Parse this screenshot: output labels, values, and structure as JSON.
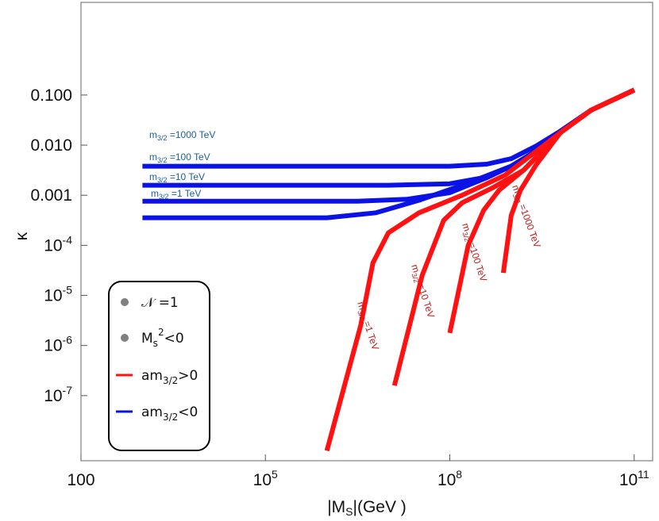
{
  "chart_data": {
    "type": "line",
    "xlabel": {
      "pre": "|M",
      "sub": "S",
      "post": "|(GeV )"
    },
    "ylabel": "κ",
    "x_log": true,
    "y_log": true,
    "xlim_log10": [
      2,
      11.3
    ],
    "ylim_log10": [
      -8.3,
      0.85
    ],
    "x_ticks": [
      {
        "exp": 2,
        "text": "100"
      },
      {
        "exp": 5,
        "base": "10",
        "sup": "5"
      },
      {
        "exp": 8,
        "base": "10",
        "sup": "8"
      },
      {
        "exp": 11,
        "base": "10",
        "sup": "11"
      }
    ],
    "y_ticks": [
      {
        "exp": -1,
        "text": "0.100"
      },
      {
        "exp": -2,
        "text": "0.010"
      },
      {
        "exp": -3,
        "text": "0.001"
      },
      {
        "exp": -4,
        "base": "10",
        "sup": "-4"
      },
      {
        "exp": -5,
        "base": "10",
        "sup": "-5"
      },
      {
        "exp": -6,
        "base": "10",
        "sup": "-6"
      },
      {
        "exp": -7,
        "base": "10",
        "sup": "-7"
      }
    ],
    "series": [
      {
        "sign": "neg",
        "color": "#0b12e6",
        "label": {
          "pre": "m",
          "sub": "3/2",
          "post": " =1000 TeV"
        },
        "points_log10": [
          [
            3,
            -2.42
          ],
          [
            6,
            -2.42
          ],
          [
            8,
            -2.42
          ],
          [
            8.6,
            -2.38
          ],
          [
            9,
            -2.27
          ],
          [
            9.4,
            -2.02
          ],
          [
            9.8,
            -1.72
          ],
          [
            10.3,
            -1.3
          ],
          [
            11,
            -0.9
          ]
        ]
      },
      {
        "sign": "neg",
        "color": "#0b12e6",
        "label": {
          "pre": "m",
          "sub": "3/2",
          "post": " =100 TeV"
        },
        "points_log10": [
          [
            3,
            -2.8
          ],
          [
            7,
            -2.8
          ],
          [
            8,
            -2.77
          ],
          [
            8.5,
            -2.66
          ],
          [
            9,
            -2.42
          ],
          [
            9.4,
            -2.12
          ],
          [
            9.8,
            -1.72
          ],
          [
            10.3,
            -1.3
          ],
          [
            11,
            -0.9
          ]
        ]
      },
      {
        "sign": "neg",
        "color": "#0b12e6",
        "label": {
          "pre": "m",
          "sub": "3/2",
          "post": " =10 TeV"
        },
        "points_log10": [
          [
            3,
            -3.12
          ],
          [
            6.5,
            -3.12
          ],
          [
            7.3,
            -3.08
          ],
          [
            8,
            -2.95
          ],
          [
            8.6,
            -2.65
          ],
          [
            9,
            -2.42
          ],
          [
            9.4,
            -2.12
          ],
          [
            9.8,
            -1.72
          ],
          [
            10.3,
            -1.3
          ],
          [
            11,
            -0.9
          ]
        ]
      },
      {
        "sign": "neg",
        "color": "#0b12e6",
        "label": {
          "pre": "m",
          "sub": "3/2",
          "post": " =1 TeV"
        },
        "points_log10": [
          [
            3,
            -3.45
          ],
          [
            6,
            -3.45
          ],
          [
            6.8,
            -3.35
          ],
          [
            7.5,
            -3.1
          ],
          [
            8.3,
            -2.76
          ],
          [
            9,
            -2.42
          ],
          [
            9.4,
            -2.12
          ],
          [
            9.8,
            -1.72
          ],
          [
            10.3,
            -1.3
          ],
          [
            11,
            -0.9
          ]
        ]
      },
      {
        "sign": "pos",
        "color": "#ff1111",
        "label": {
          "pre": "m",
          "sub": "3/2",
          "post": " =1000 TeV"
        },
        "points_log10": [
          [
            8.87,
            -4.55
          ],
          [
            9.0,
            -3.4
          ],
          [
            9.15,
            -2.9
          ],
          [
            9.4,
            -2.4
          ],
          [
            9.8,
            -1.75
          ],
          [
            10.3,
            -1.3
          ],
          [
            11,
            -0.9
          ]
        ]
      },
      {
        "sign": "pos",
        "color": "#ff1111",
        "label": {
          "pre": "m",
          "sub": "3/2",
          "post": " =100 TeV"
        },
        "points_log10": [
          [
            8,
            -5.75
          ],
          [
            8.3,
            -4.0
          ],
          [
            8.55,
            -3.3
          ],
          [
            8.8,
            -2.9
          ],
          [
            9.2,
            -2.5
          ],
          [
            9.8,
            -1.75
          ],
          [
            10.3,
            -1.3
          ],
          [
            11,
            -0.9
          ]
        ]
      },
      {
        "sign": "pos",
        "color": "#ff1111",
        "label": {
          "pre": "m",
          "sub": "3/2",
          "post": " =10 TeV"
        },
        "points_log10": [
          [
            7.1,
            -6.8
          ],
          [
            7.55,
            -4.6
          ],
          [
            7.9,
            -3.5
          ],
          [
            8.2,
            -3.15
          ],
          [
            8.7,
            -2.85
          ],
          [
            9.2,
            -2.5
          ],
          [
            9.8,
            -1.75
          ],
          [
            10.3,
            -1.3
          ],
          [
            11,
            -0.9
          ]
        ]
      },
      {
        "sign": "pos",
        "color": "#ff1111",
        "label": {
          "pre": "m",
          "sub": "3/2",
          "post": " =1 TeV"
        },
        "points_log10": [
          [
            6,
            -8.1
          ],
          [
            6.55,
            -5.6
          ],
          [
            6.75,
            -4.35
          ],
          [
            7.0,
            -3.75
          ],
          [
            7.5,
            -3.35
          ],
          [
            8.2,
            -3.0
          ],
          [
            8.9,
            -2.6
          ],
          [
            9.8,
            -1.75
          ],
          [
            10.3,
            -1.3
          ],
          [
            11,
            -0.9
          ]
        ]
      }
    ],
    "legend": {
      "placement": "bottom-left",
      "items": [
        {
          "kind": "dot",
          "color": "#808080",
          "text": "𝒩 =1"
        },
        {
          "kind": "dot",
          "color": "#808080",
          "pre": "M",
          "sub": "s",
          "sup": "2",
          "post": "<0"
        },
        {
          "kind": "line",
          "color": "#ff1111",
          "pre": "am",
          "sub": "3/2",
          "post": ">0"
        },
        {
          "kind": "line",
          "color": "#0b12e6",
          "pre": "am",
          "sub": "3/2",
          "post": "<0"
        }
      ]
    },
    "label_colors": {
      "neg": "#1a5fa0",
      "pos": "#c41a1a"
    }
  }
}
